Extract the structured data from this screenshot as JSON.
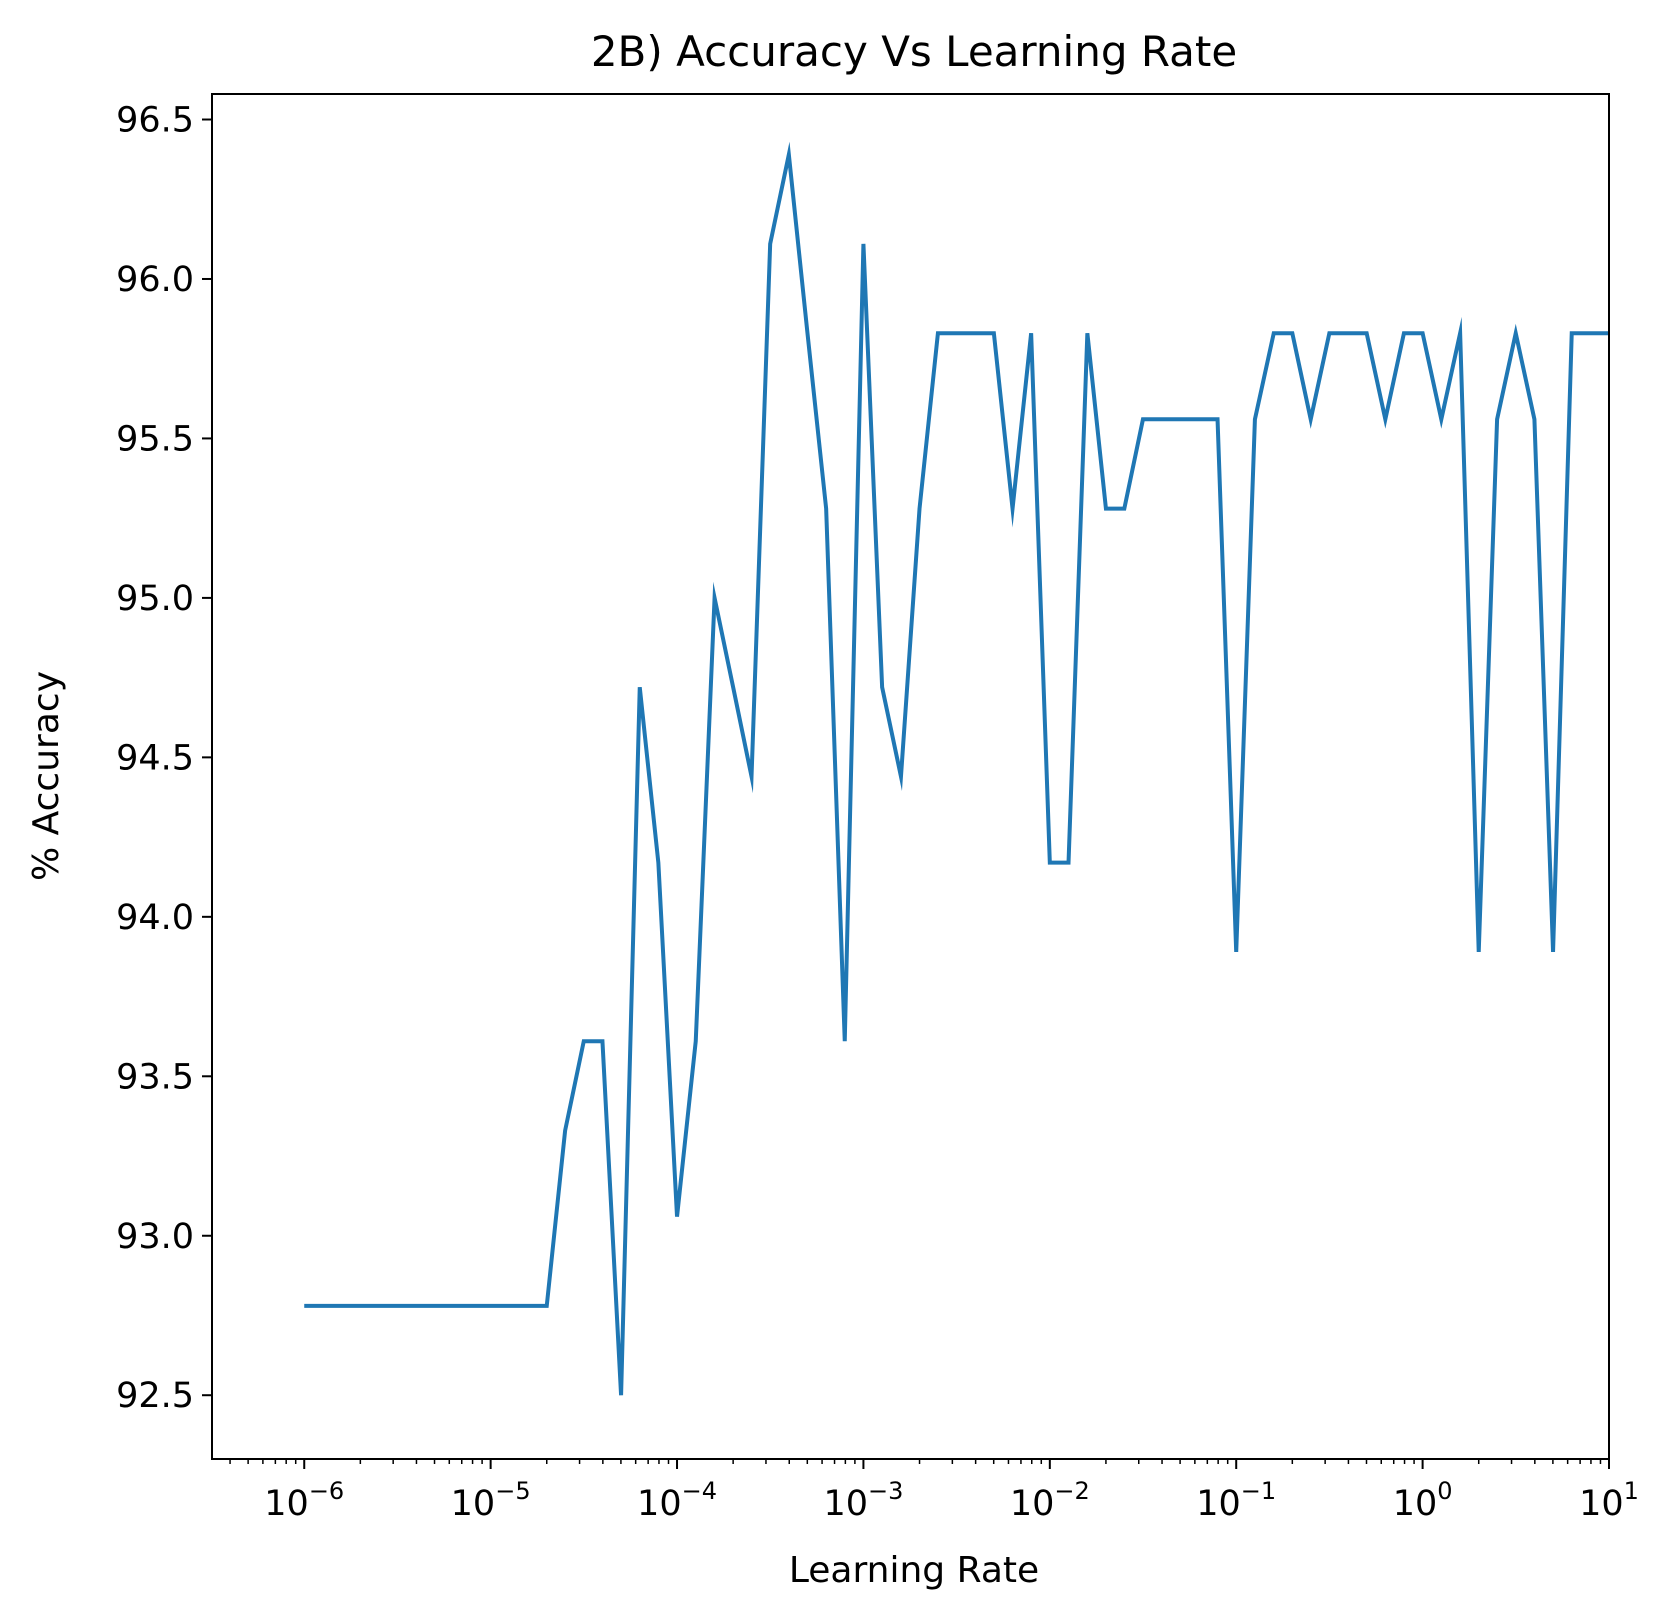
{
  "chart_data": {
    "type": "line",
    "title": "2B) Accuracy Vs Learning Rate",
    "xlabel": "Learning Rate",
    "ylabel": "% Accuracy",
    "xscale": "log",
    "xlim": [
      3.2e-07,
      10
    ],
    "ylim": [
      92.3,
      96.58
    ],
    "grid": false,
    "line_color": "#1f77b4",
    "x_ticks": [
      {
        "value": 1e-06,
        "base": "10",
        "exp": "−6"
      },
      {
        "value": 1e-05,
        "base": "10",
        "exp": "−5"
      },
      {
        "value": 0.0001,
        "base": "10",
        "exp": "−4"
      },
      {
        "value": 0.001,
        "base": "10",
        "exp": "−3"
      },
      {
        "value": 0.01,
        "base": "10",
        "exp": "−2"
      },
      {
        "value": 0.1,
        "base": "10",
        "exp": "−1"
      },
      {
        "value": 1,
        "base": "10",
        "exp": "0"
      },
      {
        "value": 10,
        "base": "10",
        "exp": "1"
      }
    ],
    "y_ticks": [
      "92.5",
      "93.0",
      "93.5",
      "94.0",
      "94.5",
      "95.0",
      "95.5",
      "96.0",
      "96.5"
    ],
    "series": [
      {
        "x": [
          1e-06,
          1.26e-06,
          1.59e-06,
          2e-06,
          2.51e-06,
          3.16e-06,
          3.98e-06,
          5.01e-06,
          6.31e-06,
          7.94e-06,
          1e-05,
          1.26e-05,
          1.59e-05,
          2e-05,
          2.51e-05,
          3.16e-05,
          3.98e-05,
          5.01e-05,
          6.31e-05,
          7.94e-05,
          0.0001,
          0.000126,
          0.000159,
          0.0002,
          0.000251,
          0.000316,
          0.000398,
          0.000501,
          0.000631,
          0.000794,
          0.001,
          0.00126,
          0.00159,
          0.002,
          0.00251,
          0.00316,
          0.00398,
          0.00501,
          0.00631,
          0.00794,
          0.01,
          0.0126,
          0.0159,
          0.02,
          0.0251,
          0.0316,
          0.0398,
          0.0501,
          0.0631,
          0.0794,
          0.1,
          0.126,
          0.159,
          0.2,
          0.251,
          0.316,
          0.398,
          0.501,
          0.631,
          0.794,
          1.0,
          1.26,
          1.59,
          2.0,
          2.51,
          3.16,
          3.98,
          5.01,
          6.31,
          7.94,
          10.0
        ],
        "y": [
          92.78,
          92.78,
          92.78,
          92.78,
          92.78,
          92.78,
          92.78,
          92.78,
          92.78,
          92.78,
          92.78,
          92.78,
          92.78,
          92.78,
          93.33,
          93.61,
          93.61,
          92.5,
          94.72,
          94.17,
          93.06,
          93.61,
          95.0,
          94.72,
          94.44,
          96.11,
          96.39,
          95.83,
          95.28,
          93.61,
          96.11,
          94.72,
          94.44,
          95.28,
          95.83,
          95.83,
          95.83,
          95.83,
          95.28,
          95.83,
          94.17,
          94.17,
          95.83,
          95.28,
          95.28,
          95.56,
          95.56,
          95.56,
          95.56,
          95.56,
          93.89,
          95.56,
          95.83,
          95.83,
          95.56,
          95.83,
          95.83,
          95.83,
          95.56,
          95.83,
          95.83,
          95.56,
          95.83,
          93.89,
          95.56,
          95.83,
          95.56,
          93.89,
          95.83,
          95.83,
          95.83
        ]
      }
    ]
  }
}
